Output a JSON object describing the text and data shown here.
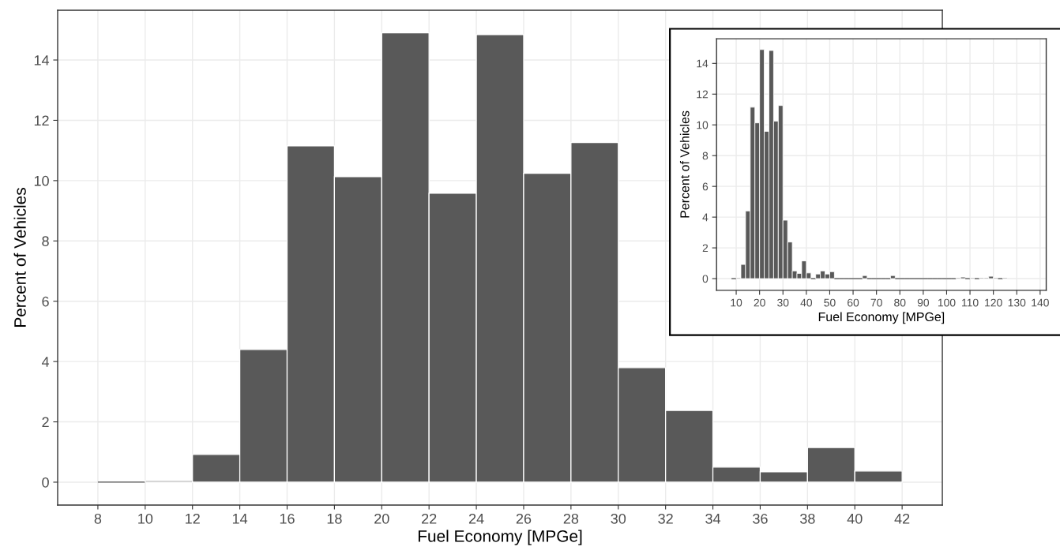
{
  "chart_data": [
    {
      "type": "histogram",
      "xlabel": "Fuel Economy [MPGe]",
      "ylabel": "Percent of Vehicles",
      "color": "#595959",
      "bins": [
        8,
        10,
        12,
        14,
        16,
        18,
        20,
        22,
        24,
        26,
        28,
        30,
        32,
        34,
        36,
        38,
        40,
        42
      ],
      "values": [
        0,
        0.05,
        0.92,
        4.4,
        11.15,
        10.13,
        14.9,
        9.58,
        14.84,
        10.24,
        11.26,
        3.8,
        2.38,
        0.5,
        0.34,
        1.15,
        0.37
      ],
      "xlim": [
        6.3,
        43.7
      ],
      "ylim": [
        -0.76,
        15.65
      ],
      "xticks": [
        8,
        10,
        12,
        14,
        16,
        18,
        20,
        22,
        24,
        26,
        28,
        30,
        32,
        34,
        36,
        38,
        40,
        42
      ],
      "yticks": [
        0,
        2,
        4,
        6,
        8,
        10,
        12,
        14
      ],
      "grid": true
    },
    {
      "type": "histogram",
      "xlabel": "Fuel Economy [MPGe]",
      "ylabel": "Percent of Vehicles",
      "color": "#595959",
      "bins": [
        8,
        10,
        12,
        14,
        16,
        18,
        20,
        22,
        24,
        26,
        28,
        30,
        32,
        34,
        36,
        38,
        40,
        42,
        44,
        46,
        48,
        50,
        52,
        54,
        56,
        58,
        60,
        62,
        64,
        66,
        68,
        70,
        72,
        74,
        76,
        78,
        80,
        82,
        84,
        86,
        88,
        90,
        92,
        94,
        96,
        98,
        100,
        102,
        104,
        106,
        108,
        110,
        112,
        114,
        116,
        118,
        120,
        122,
        124,
        126
      ],
      "values": [
        0,
        0.05,
        0.92,
        4.4,
        11.15,
        10.13,
        14.9,
        9.58,
        14.84,
        10.24,
        11.26,
        3.8,
        2.38,
        0.5,
        0.34,
        1.15,
        0.37,
        0,
        0.3,
        0.5,
        0.3,
        0.45,
        0,
        0,
        0,
        0,
        0,
        0,
        0.2,
        0,
        0,
        0,
        0,
        0,
        0.2,
        0,
        0,
        0,
        0,
        0,
        0,
        0,
        0,
        0,
        0,
        0,
        0,
        0,
        0.05,
        0.1,
        0,
        0.05,
        0,
        0.05,
        0.05,
        0.15,
        0.05,
        0,
        0.05
      ],
      "xlim": [
        1.6,
        142.6
      ],
      "ylim": [
        -0.76,
        15.6
      ],
      "xticks": [
        10,
        20,
        30,
        40,
        50,
        60,
        70,
        80,
        90,
        100,
        110,
        120,
        130,
        140
      ],
      "yticks": [
        0,
        2,
        4,
        6,
        8,
        10,
        12,
        14
      ],
      "grid": true
    }
  ]
}
